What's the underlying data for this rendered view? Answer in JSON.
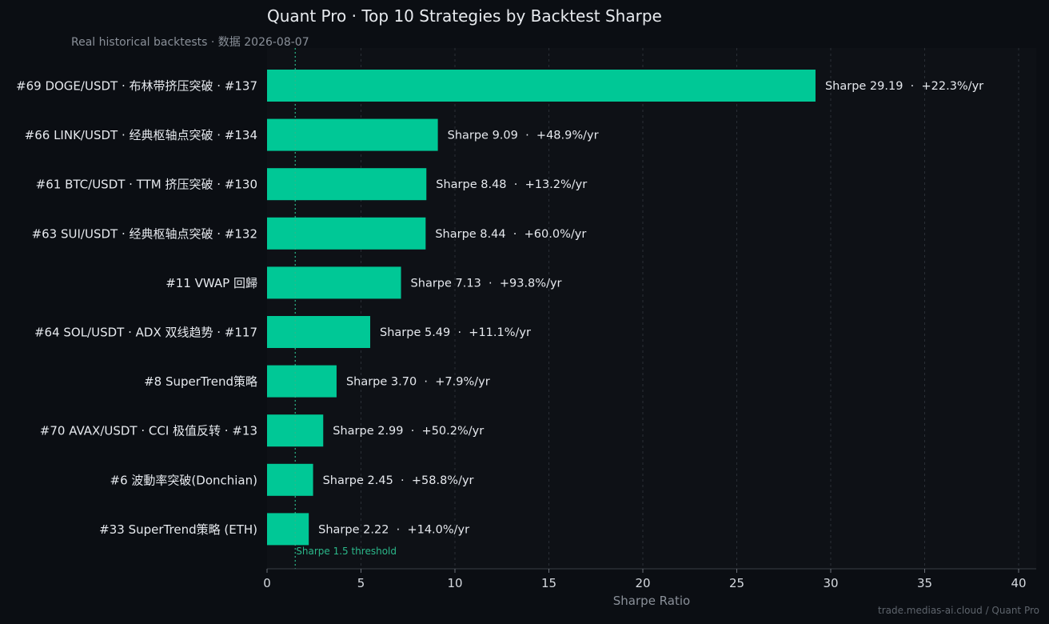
{
  "chart_data": {
    "type": "bar",
    "orientation": "horizontal",
    "title": "Quant Pro · Top 10 Strategies by Backtest Sharpe",
    "subtitle": "Real historical backtests · 数据 2026-08-07",
    "xlabel": "Sharpe Ratio",
    "xlim": [
      0,
      40
    ],
    "xticks": [
      0,
      5,
      10,
      15,
      20,
      25,
      30,
      35,
      40
    ],
    "grid": "vertical",
    "bar_color": "#00c896",
    "threshold": {
      "value": 1.5,
      "label": "Sharpe 1.5 threshold",
      "color": "#2bb88a"
    },
    "categories": [
      "#69 DOGE/USDT · 布林带挤压突破 · #137",
      "#66 LINK/USDT · 经典枢轴点突破 · #134",
      "#61 BTC/USDT · TTM 挤压突破 · #130",
      "#63 SUI/USDT · 经典枢轴点突破 · #132",
      "#11 VWAP 回歸",
      "#64 SOL/USDT · ADX 双线趋势 · #117",
      "#8 SuperTrend策略",
      "#70 AVAX/USDT · CCI 极值反转 · #13",
      "#6 波動率突破(Donchian)",
      "#33 SuperTrend策略 (ETH)"
    ],
    "values": [
      29.19,
      9.09,
      8.48,
      8.44,
      7.13,
      5.49,
      3.7,
      2.99,
      2.45,
      2.22
    ],
    "data_labels": [
      "Sharpe 29.19  ·  +22.3%/yr",
      "Sharpe 9.09  ·  +48.9%/yr",
      "Sharpe 8.48  ·  +13.2%/yr",
      "Sharpe 8.44  ·  +60.0%/yr",
      "Sharpe 7.13  ·  +93.8%/yr",
      "Sharpe 5.49  ·  +11.1%/yr",
      "Sharpe 3.70  ·  +7.9%/yr",
      "Sharpe 2.99  ·  +50.2%/yr",
      "Sharpe 2.45  ·  +58.8%/yr",
      "Sharpe 2.22  ·  +14.0%/yr"
    ]
  },
  "footer": "trade.medias-ai.cloud / Quant Pro"
}
